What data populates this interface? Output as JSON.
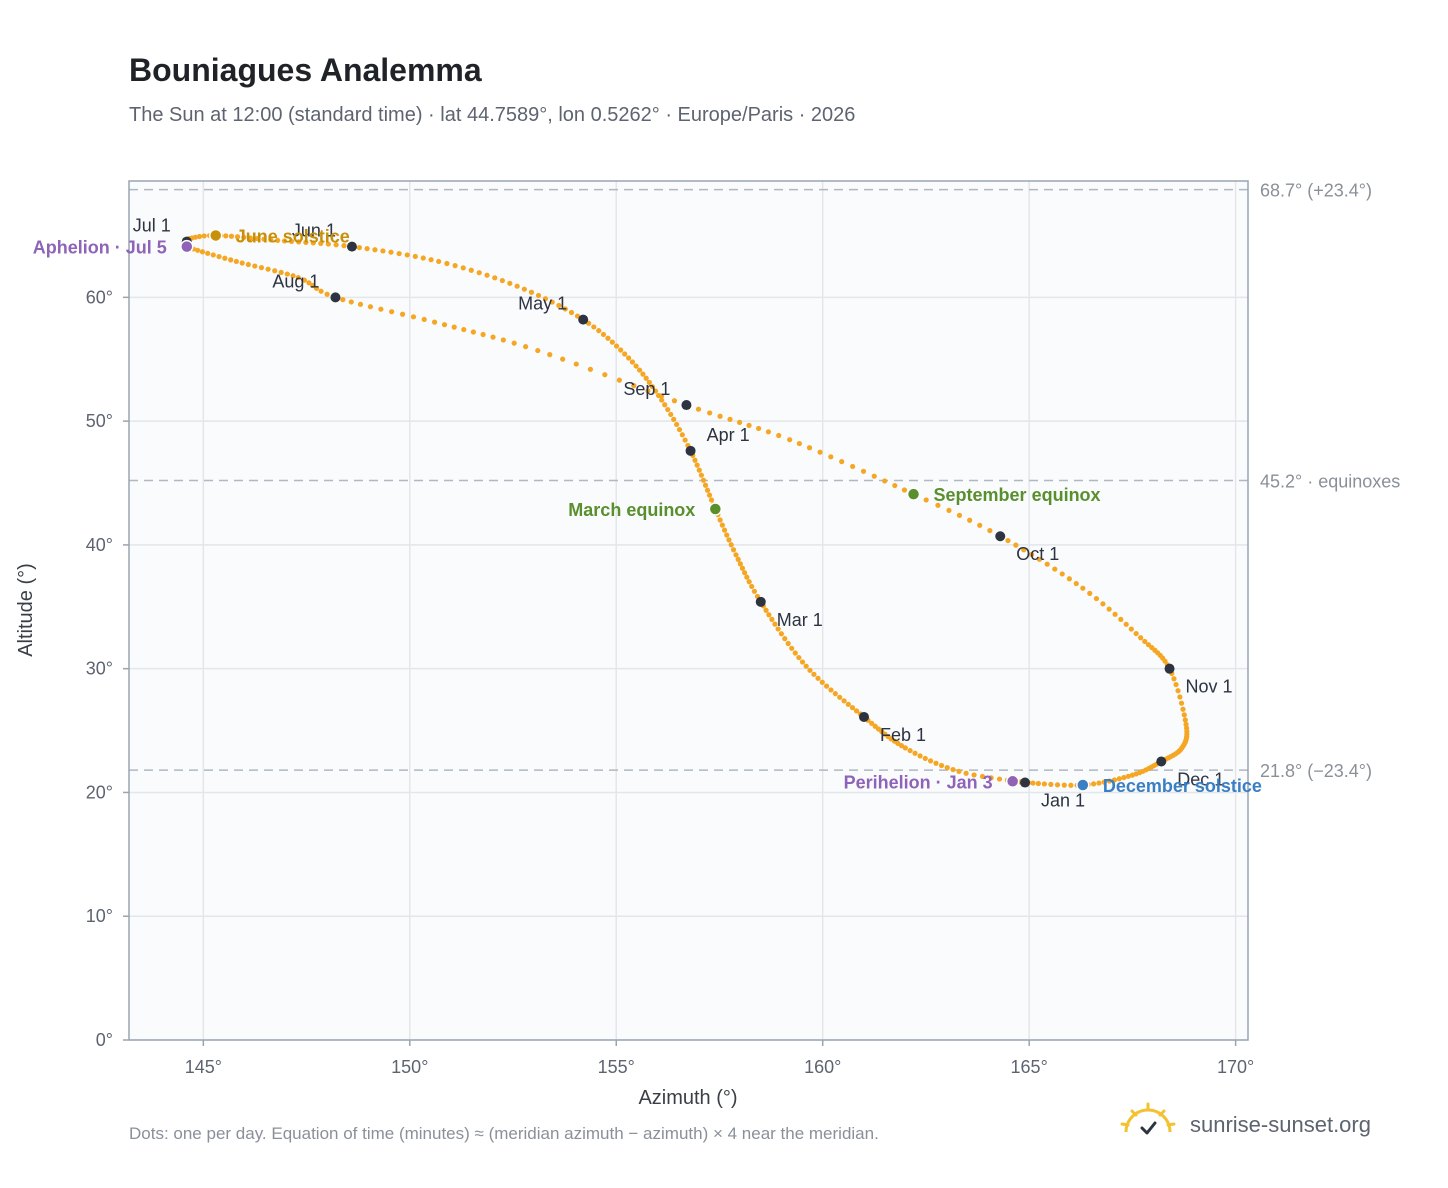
{
  "title": "Bouniagues Analemma",
  "subtitle": "The Sun at 12:00 (standard time) · lat 44.7589°, lon 0.5262° · Europe/Paris · 2026",
  "footnote": "Dots: one per day. Equation of time (minutes) ≈ (meridian azimuth − azimuth) × 4 near the meridian.",
  "brand": {
    "name": "sunrise-sunset.org",
    "logo_icon": "sun-horizon-icon"
  },
  "colors": {
    "curve": "#f5a623",
    "month_dot": "#2d3340",
    "aphelion": "#8e63b8",
    "perihelion": "#8e63b8",
    "june_solstice": "#c8900a",
    "december_solstice": "#3a7ec4",
    "equinox": "#5a8f2e",
    "grid": "#e3e6ea",
    "plot_bg": "#f9fbfc",
    "ref_line": "#b0b8c1",
    "axis": "#9aa5b1"
  },
  "chart_data": {
    "type": "scatter",
    "title": "Bouniagues Analemma",
    "xlabel": "Azimuth (°)",
    "ylabel": "Altitude (°)",
    "xlim": [
      143.2,
      170.3
    ],
    "ylim": [
      0,
      69.4
    ],
    "x_ticks": [
      145,
      150,
      155,
      160,
      165,
      170
    ],
    "x_tick_labels": [
      "145°",
      "150°",
      "155°",
      "160°",
      "165°",
      "170°"
    ],
    "y_ticks": [
      0,
      10,
      20,
      30,
      40,
      50,
      60
    ],
    "y_tick_labels": [
      "0°",
      "10°",
      "20°",
      "30°",
      "40°",
      "50°",
      "60°"
    ],
    "grid": true,
    "reference_lines": [
      {
        "y": 68.7,
        "label": "68.7° (+23.4°)"
      },
      {
        "y": 45.2,
        "label": "45.2° · equinoxes"
      },
      {
        "y": 21.8,
        "label": "21.8° (−23.4°)"
      }
    ],
    "curve_points": [
      {
        "day": 1,
        "x": 164.9,
        "y": 20.8
      },
      {
        "day": 10,
        "x": 163.3,
        "y": 21.7
      },
      {
        "day": 20,
        "x": 162.0,
        "y": 23.6
      },
      {
        "day": 32,
        "x": 161.0,
        "y": 26.1
      },
      {
        "day": 46,
        "x": 159.6,
        "y": 30.2
      },
      {
        "day": 60,
        "x": 158.5,
        "y": 35.4
      },
      {
        "day": 70,
        "x": 157.9,
        "y": 39.2
      },
      {
        "day": 79,
        "x": 157.4,
        "y": 42.9
      },
      {
        "day": 91,
        "x": 156.8,
        "y": 47.6
      },
      {
        "day": 101,
        "x": 156.1,
        "y": 51.7
      },
      {
        "day": 111,
        "x": 155.3,
        "y": 55.1
      },
      {
        "day": 121,
        "x": 154.2,
        "y": 58.2
      },
      {
        "day": 131,
        "x": 152.6,
        "y": 60.9
      },
      {
        "day": 141,
        "x": 150.7,
        "y": 62.9
      },
      {
        "day": 152,
        "x": 148.6,
        "y": 64.1
      },
      {
        "day": 162,
        "x": 146.8,
        "y": 64.6
      },
      {
        "day": 172,
        "x": 145.3,
        "y": 65.0
      },
      {
        "day": 179,
        "x": 144.6,
        "y": 64.7
      },
      {
        "day": 182,
        "x": 144.6,
        "y": 64.5
      },
      {
        "day": 186,
        "x": 144.6,
        "y": 64.1
      },
      {
        "day": 196,
        "x": 145.8,
        "y": 62.9
      },
      {
        "day": 206,
        "x": 147.3,
        "y": 61.6
      },
      {
        "day": 213,
        "x": 148.2,
        "y": 60.0
      },
      {
        "day": 223,
        "x": 150.6,
        "y": 58.0
      },
      {
        "day": 233,
        "x": 153.1,
        "y": 55.7
      },
      {
        "day": 244,
        "x": 156.7,
        "y": 51.3
      },
      {
        "day": 254,
        "x": 159.2,
        "y": 48.5
      },
      {
        "day": 266,
        "x": 162.2,
        "y": 44.1
      },
      {
        "day": 274,
        "x": 164.3,
        "y": 40.7
      },
      {
        "day": 285,
        "x": 166.3,
        "y": 36.5
      },
      {
        "day": 295,
        "x": 167.7,
        "y": 32.5
      },
      {
        "day": 305,
        "x": 168.4,
        "y": 30.0
      },
      {
        "day": 315,
        "x": 168.8,
        "y": 25.5
      },
      {
        "day": 325,
        "x": 168.7,
        "y": 23.6
      },
      {
        "day": 335,
        "x": 168.2,
        "y": 22.5
      },
      {
        "day": 345,
        "x": 167.5,
        "y": 21.4
      },
      {
        "day": 355,
        "x": 166.3,
        "y": 20.6
      },
      {
        "day": 365,
        "x": 164.9,
        "y": 20.8
      }
    ],
    "month_markers": [
      {
        "label": "Jan 1",
        "x": 164.9,
        "y": 20.8,
        "anchor": "below-right"
      },
      {
        "label": "Feb 1",
        "x": 161.0,
        "y": 26.1,
        "anchor": "right-below"
      },
      {
        "label": "Mar 1",
        "x": 158.5,
        "y": 35.4,
        "anchor": "right-below"
      },
      {
        "label": "Apr 1",
        "x": 156.8,
        "y": 47.6,
        "anchor": "right-above"
      },
      {
        "label": "May 1",
        "x": 154.2,
        "y": 58.2,
        "anchor": "left-above"
      },
      {
        "label": "Jun 1",
        "x": 148.6,
        "y": 64.1,
        "anchor": "left-above"
      },
      {
        "label": "Jul 1",
        "x": 144.6,
        "y": 64.5,
        "anchor": "left-above"
      },
      {
        "label": "Aug 1",
        "x": 148.2,
        "y": 60.0,
        "anchor": "left-above"
      },
      {
        "label": "Sep 1",
        "x": 156.7,
        "y": 51.3,
        "anchor": "left-above"
      },
      {
        "label": "Oct 1",
        "x": 164.3,
        "y": 40.7,
        "anchor": "right-below"
      },
      {
        "label": "Nov 1",
        "x": 168.4,
        "y": 30.0,
        "anchor": "right-below"
      },
      {
        "label": "Dec 1",
        "x": 168.2,
        "y": 22.5,
        "anchor": "right-below"
      }
    ],
    "events": [
      {
        "label": "Aphelion · Jul 5",
        "x": 144.6,
        "y": 64.1,
        "color_key": "aphelion",
        "side": "left"
      },
      {
        "label": "June solstice",
        "x": 145.3,
        "y": 65.0,
        "color_key": "june_solstice",
        "side": "right"
      },
      {
        "label": "March equinox",
        "x": 157.4,
        "y": 42.9,
        "color_key": "equinox",
        "side": "left"
      },
      {
        "label": "September equinox",
        "x": 162.2,
        "y": 44.1,
        "color_key": "equinox",
        "side": "right"
      },
      {
        "label": "Perihelion · Jan 3",
        "x": 164.6,
        "y": 20.9,
        "color_key": "perihelion",
        "side": "left"
      },
      {
        "label": "December solstice",
        "x": 166.3,
        "y": 20.6,
        "color_key": "december_solstice",
        "side": "right"
      }
    ]
  }
}
